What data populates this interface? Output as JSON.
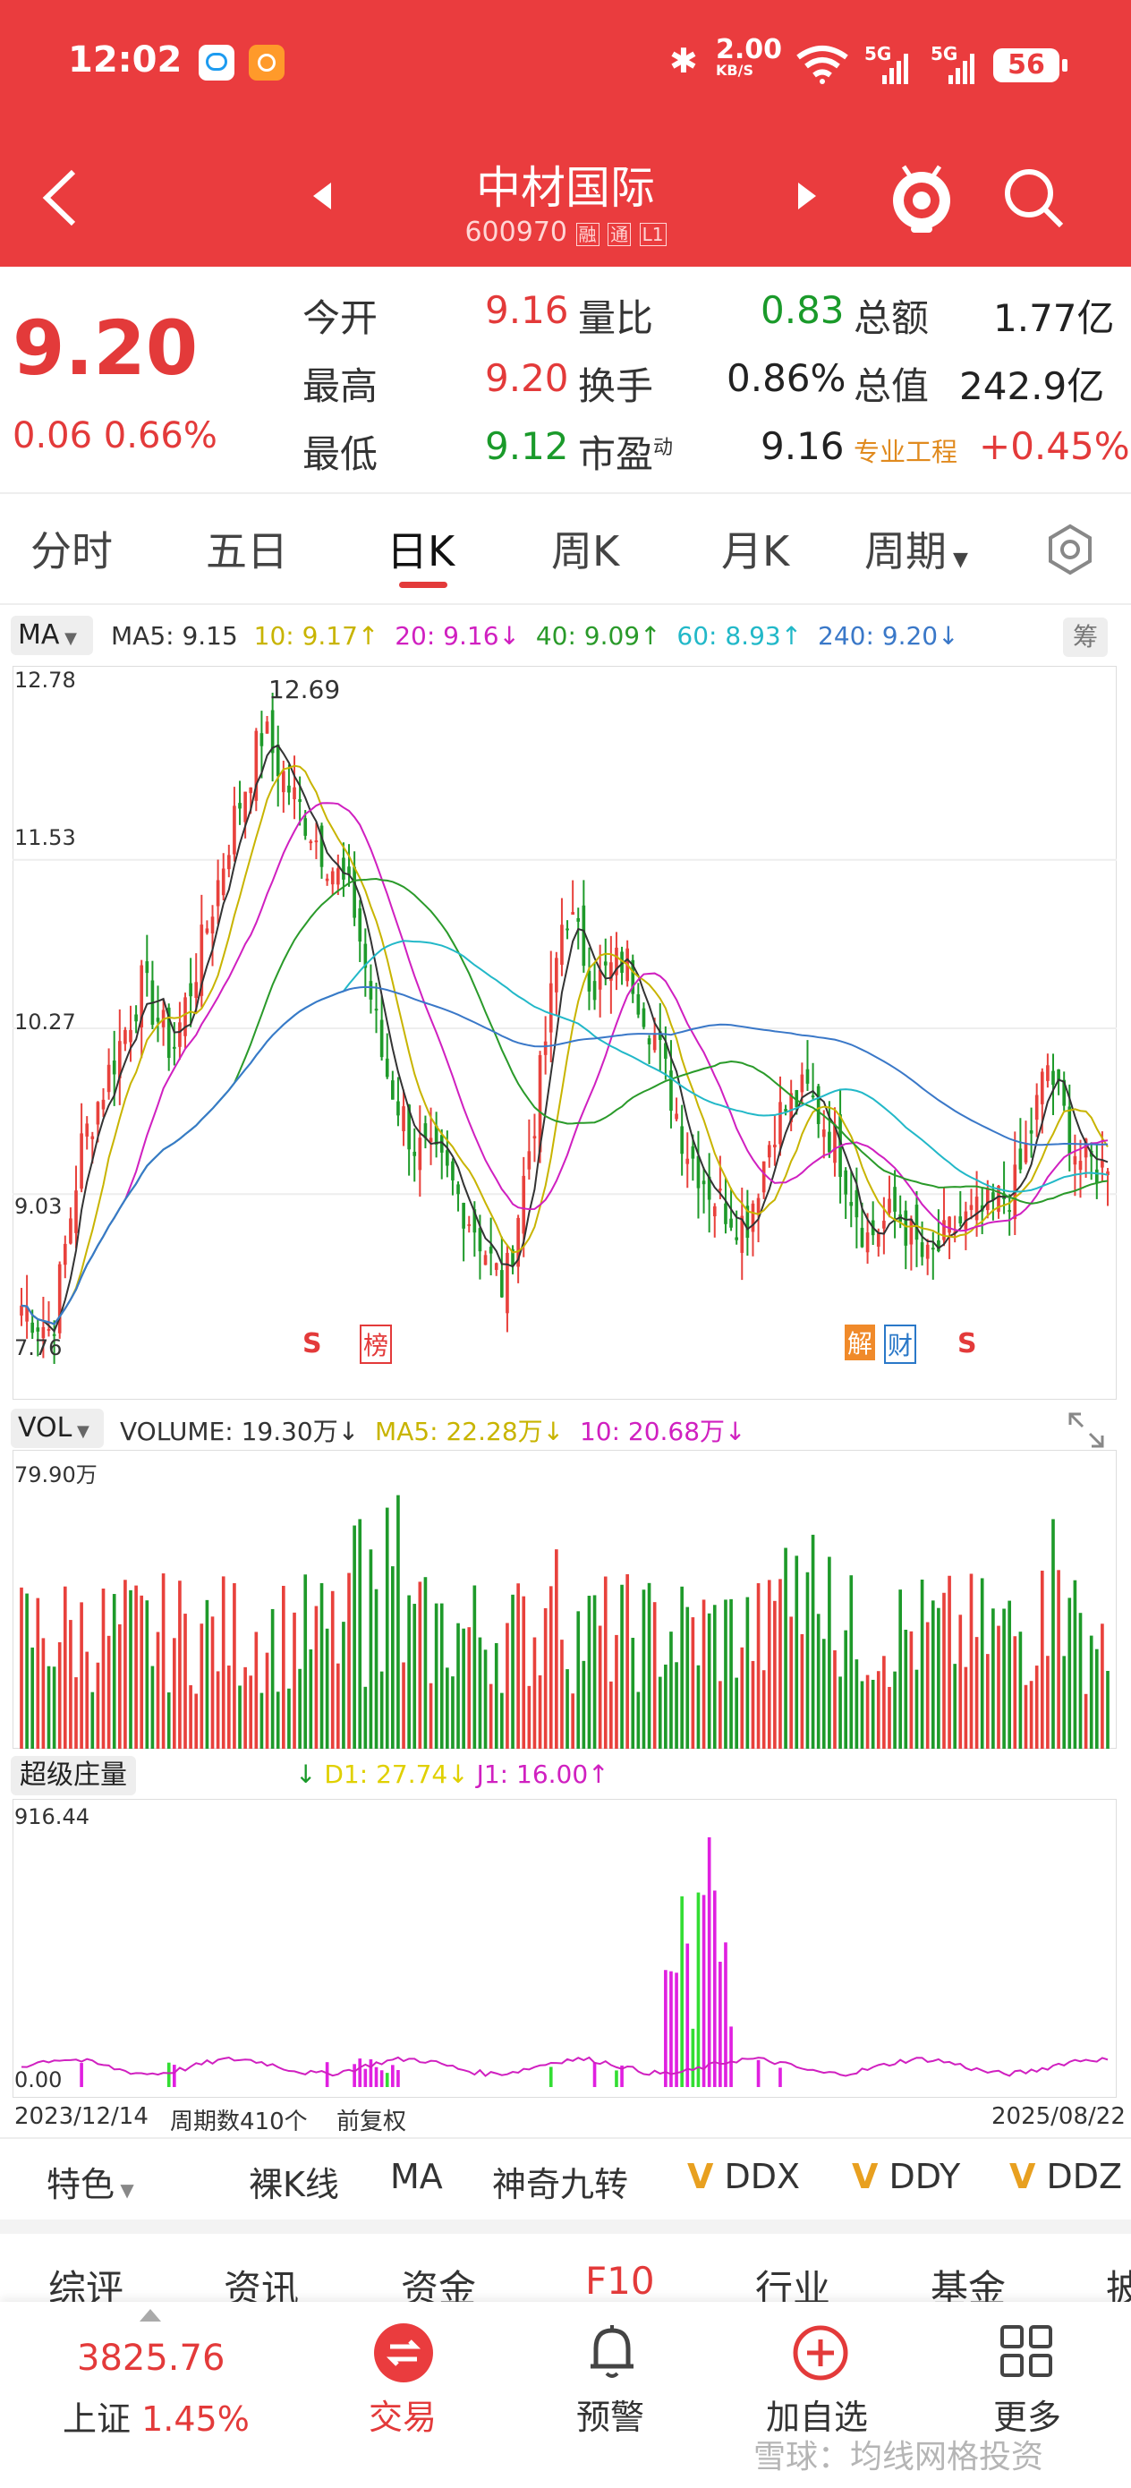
{
  "status_bar": {
    "time": "12:02",
    "net_speed_value": "2.00",
    "net_speed_unit": "KB/S",
    "battery": "56",
    "signal_1": "5G",
    "signal_2": "5G"
  },
  "nav": {
    "title": "中材国际",
    "code": "600970",
    "tag_1": "融",
    "tag_2": "通",
    "tag_3": "L1"
  },
  "quote": {
    "price": "9.20",
    "change": "0.06",
    "change_pct": "0.66%",
    "open_label": "今开",
    "open_value": "9.16",
    "high_label": "最高",
    "high_value": "9.20",
    "low_label": "最低",
    "low_value": "9.12",
    "vol_ratio_label": "量比",
    "vol_ratio_value": "0.83",
    "turnover_label": "换手",
    "turnover_value": "0.86%",
    "pe_label": "市盈",
    "pe_sup": "动",
    "pe_value": "9.16",
    "amount_label": "总额",
    "amount_value": "1.77亿",
    "mcap_label": "总值",
    "mcap_value": "242.9亿",
    "sector_label": "专业工程",
    "sector_value": "+0.45%"
  },
  "tabs": [
    "分时",
    "五日",
    "日K",
    "周K",
    "月K",
    "周期"
  ],
  "active_tab": 2,
  "ma_legend": {
    "selector": "MA",
    "ma5": "MA5: 9.15",
    "ma10": "10: 9.17↑",
    "ma20": "20: 9.16↓",
    "ma40": "40: 9.09↑",
    "ma60": "60: 8.93↑",
    "ma240": "240: 9.20↓",
    "chip_button": "筹",
    "colors": {
      "ma5": "#333333",
      "ma10": "#c8b400",
      "ma20": "#d020c0",
      "ma40": "#2a9a2a",
      "ma60": "#22b8c8",
      "ma240": "#3a78c8"
    }
  },
  "price_axis": {
    "max": "12.78",
    "l2": "11.53",
    "l3": "10.27",
    "l4": "9.03",
    "min": "7.76"
  },
  "kline_labels": {
    "peak": "12.69",
    "mark_s1": "S",
    "mark_bang": "榜",
    "mark_jie": "解",
    "mark_cai": "财",
    "mark_s2": "S"
  },
  "vol_legend": {
    "selector": "VOL",
    "volume": "VOLUME: 19.30万↓",
    "ma5": "MA5: 22.28万↓",
    "ma10": "10: 20.68万↓",
    "axis_max": "79.90万"
  },
  "zl_legend": {
    "name": "超级庄量",
    "d1": "D1: 27.74↓",
    "j1": "J1: 16.00↑",
    "axis_max": "916.44",
    "axis_min": "0.00"
  },
  "date_axis": {
    "start": "2023/12/14",
    "count": "周期数410个",
    "adj": "前复权",
    "end": "2025/08/22"
  },
  "indicator_bar": {
    "feature": "特色",
    "items": [
      "裸K线",
      "MA",
      "神奇九转",
      "DDX",
      "DDY",
      "DDZ"
    ]
  },
  "sub_tabs": [
    "综评",
    "资讯",
    "资金",
    "F10",
    "行业",
    "基金",
    "披"
  ],
  "bottom_nav": {
    "index_value": "3825.76",
    "index_name": "上证",
    "index_change": "1.45%",
    "items": [
      "交易",
      "预警",
      "加自选",
      "更多"
    ],
    "watermark": "雪球：均线网格投资"
  },
  "chart_data": {
    "type": "candlestick",
    "x_range": [
      "2023/12/14",
      "2025/08/22"
    ],
    "periods": 410,
    "price_ylim": [
      7.76,
      12.78
    ],
    "price_ticks": [
      12.78,
      11.53,
      10.27,
      9.03,
      7.76
    ],
    "peak_value": 12.69,
    "approx_close_path": [
      8.2,
      8.0,
      9.4,
      10.0,
      10.6,
      10.1,
      10.9,
      11.8,
      12.5,
      12.0,
      11.6,
      11.2,
      10.0,
      9.4,
      9.2,
      8.8,
      8.3,
      9.6,
      11.2,
      10.6,
      10.8,
      10.2,
      9.4,
      9.0,
      8.8,
      9.6,
      9.8,
      9.4,
      8.7,
      8.9,
      8.5,
      8.8,
      8.9,
      9.1,
      10.0,
      9.3,
      9.2
    ],
    "volume_max": "79.90万",
    "zl_max": 916.44
  }
}
